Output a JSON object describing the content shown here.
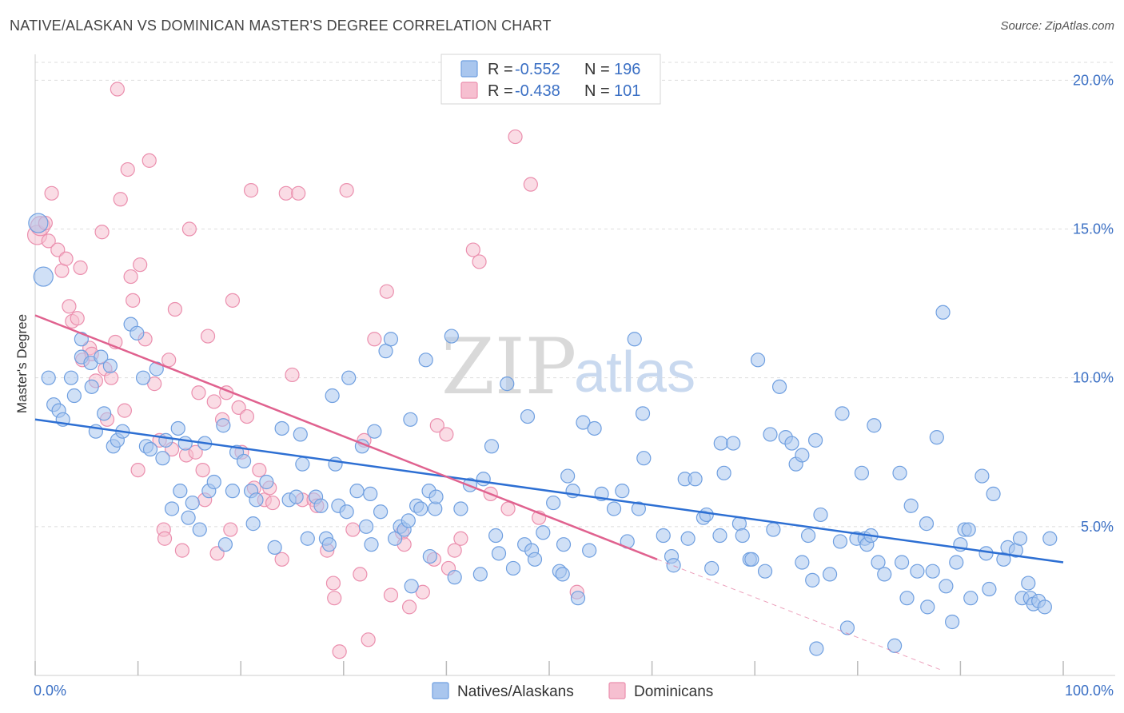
{
  "title": "NATIVE/ALASKAN VS DOMINICAN MASTER'S DEGREE CORRELATION CHART",
  "source": "Source: ZipAtlas.com",
  "colors": {
    "blue_fill": "#a9c6ee",
    "blue_stroke": "#6f9fe0",
    "blue_line": "#2d6fd3",
    "pink_fill": "#f6bfd0",
    "pink_stroke": "#eb8fae",
    "pink_line": "#e0628f",
    "axis_text": "#3a6fc4",
    "grid": "#dddddd"
  },
  "legend": {
    "r_label": "R =",
    "n_label": "N =",
    "rows": [
      {
        "series": "Natives/Alaskans",
        "r": "-0.552",
        "n": "196"
      },
      {
        "series": "Dominicans",
        "r": "-0.438",
        "n": "101"
      }
    ]
  },
  "watermark": {
    "zip": "ZIP",
    "atlas": "atlas"
  },
  "chart_data": {
    "type": "scatter",
    "xlabel": "",
    "ylabel": "Master's Degree",
    "xlim": [
      0,
      100
    ],
    "ylim": [
      0,
      20.6
    ],
    "y_ticks": [
      5,
      10,
      15,
      20
    ],
    "y_tick_labels": [
      "5.0%",
      "10.0%",
      "15.0%",
      "20.0%"
    ],
    "x_tick_labels": [
      "0.0%",
      "100.0%"
    ],
    "grid": true,
    "series": [
      {
        "name": "Natives/Alaskans",
        "trend": {
          "x": [
            0,
            100
          ],
          "y": [
            8.6,
            3.8
          ],
          "dashed_extension": null
        },
        "points": [
          [
            0.3,
            15.2
          ],
          [
            0.8,
            13.4
          ],
          [
            1.3,
            10.0
          ],
          [
            1.8,
            9.1
          ],
          [
            2.3,
            8.9
          ],
          [
            2.7,
            8.6
          ],
          [
            3.5,
            10.0
          ],
          [
            3.8,
            9.4
          ],
          [
            4.5,
            11.3
          ],
          [
            4.5,
            10.7
          ],
          [
            5.4,
            10.5
          ],
          [
            5.5,
            9.7
          ],
          [
            5.9,
            8.2
          ],
          [
            6.4,
            10.7
          ],
          [
            6.7,
            8.8
          ],
          [
            7.3,
            10.4
          ],
          [
            7.6,
            7.7
          ],
          [
            8.0,
            7.9
          ],
          [
            8.5,
            8.2
          ],
          [
            9.3,
            11.8
          ],
          [
            9.9,
            11.5
          ],
          [
            10.5,
            10.0
          ],
          [
            10.8,
            7.7
          ],
          [
            11.2,
            7.6
          ],
          [
            11.8,
            10.3
          ],
          [
            12.4,
            7.3
          ],
          [
            12.7,
            7.9
          ],
          [
            13.3,
            5.6
          ],
          [
            13.9,
            8.3
          ],
          [
            14.1,
            6.2
          ],
          [
            14.6,
            7.8
          ],
          [
            14.9,
            5.3
          ],
          [
            15.3,
            5.8
          ],
          [
            16.0,
            4.9
          ],
          [
            16.5,
            7.8
          ],
          [
            16.9,
            6.2
          ],
          [
            17.4,
            6.5
          ],
          [
            18.3,
            8.4
          ],
          [
            18.5,
            4.4
          ],
          [
            19.2,
            6.2
          ],
          [
            19.6,
            7.5
          ],
          [
            20.3,
            7.2
          ],
          [
            21.0,
            6.2
          ],
          [
            21.2,
            5.1
          ],
          [
            21.5,
            5.9
          ],
          [
            22.5,
            6.5
          ],
          [
            23.3,
            4.3
          ],
          [
            24.0,
            8.3
          ],
          [
            24.7,
            5.9
          ],
          [
            25.4,
            6.0
          ],
          [
            25.8,
            8.1
          ],
          [
            26.0,
            7.1
          ],
          [
            26.5,
            4.6
          ],
          [
            27.3,
            6.0
          ],
          [
            27.8,
            5.7
          ],
          [
            28.3,
            4.6
          ],
          [
            28.6,
            4.4
          ],
          [
            28.9,
            9.4
          ],
          [
            29.2,
            7.1
          ],
          [
            29.5,
            5.7
          ],
          [
            30.3,
            5.5
          ],
          [
            30.5,
            10.0
          ],
          [
            31.3,
            6.2
          ],
          [
            31.8,
            7.7
          ],
          [
            32.2,
            5.0
          ],
          [
            32.6,
            6.1
          ],
          [
            32.7,
            4.4
          ],
          [
            33.0,
            8.2
          ],
          [
            33.6,
            5.5
          ],
          [
            34.1,
            10.9
          ],
          [
            34.6,
            11.3
          ],
          [
            35.0,
            4.6
          ],
          [
            35.5,
            5.0
          ],
          [
            35.9,
            4.9
          ],
          [
            36.3,
            5.2
          ],
          [
            36.5,
            8.6
          ],
          [
            36.6,
            3.0
          ],
          [
            37.1,
            5.7
          ],
          [
            37.5,
            5.6
          ],
          [
            38.0,
            10.6
          ],
          [
            38.3,
            6.2
          ],
          [
            38.9,
            5.6
          ],
          [
            38.4,
            4.0
          ],
          [
            39.0,
            6.0
          ],
          [
            40.5,
            11.4
          ],
          [
            40.8,
            3.3
          ],
          [
            41.4,
            5.6
          ],
          [
            42.3,
            6.4
          ],
          [
            43.3,
            3.4
          ],
          [
            43.6,
            6.6
          ],
          [
            44.4,
            7.7
          ],
          [
            44.8,
            4.7
          ],
          [
            45.1,
            4.1
          ],
          [
            45.9,
            9.8
          ],
          [
            46.5,
            3.6
          ],
          [
            47.6,
            4.4
          ],
          [
            47.9,
            8.7
          ],
          [
            48.3,
            4.2
          ],
          [
            48.6,
            3.9
          ],
          [
            49.4,
            4.8
          ],
          [
            50.4,
            5.8
          ],
          [
            51.0,
            3.5
          ],
          [
            51.3,
            3.4
          ],
          [
            51.4,
            4.4
          ],
          [
            51.8,
            6.7
          ],
          [
            52.3,
            6.2
          ],
          [
            52.8,
            2.6
          ],
          [
            53.3,
            8.5
          ],
          [
            53.9,
            4.2
          ],
          [
            54.4,
            8.3
          ],
          [
            55.1,
            6.1
          ],
          [
            56.3,
            5.6
          ],
          [
            57.1,
            6.2
          ],
          [
            57.6,
            4.5
          ],
          [
            58.3,
            11.3
          ],
          [
            58.7,
            5.6
          ],
          [
            59.1,
            8.8
          ],
          [
            59.2,
            7.3
          ],
          [
            61.1,
            4.7
          ],
          [
            61.9,
            4.0
          ],
          [
            62.1,
            3.7
          ],
          [
            63.2,
            6.6
          ],
          [
            63.5,
            4.6
          ],
          [
            64.2,
            6.6
          ],
          [
            65.0,
            5.3
          ],
          [
            65.3,
            5.4
          ],
          [
            65.8,
            3.6
          ],
          [
            66.6,
            4.7
          ],
          [
            66.7,
            7.8
          ],
          [
            67.0,
            6.8
          ],
          [
            67.9,
            7.8
          ],
          [
            68.5,
            5.1
          ],
          [
            68.8,
            4.7
          ],
          [
            69.5,
            3.9
          ],
          [
            69.7,
            3.9
          ],
          [
            70.3,
            10.6
          ],
          [
            71.0,
            3.5
          ],
          [
            71.5,
            8.1
          ],
          [
            71.8,
            4.9
          ],
          [
            72.4,
            9.7
          ],
          [
            73.0,
            8.0
          ],
          [
            73.6,
            7.8
          ],
          [
            74.0,
            7.1
          ],
          [
            74.6,
            7.4
          ],
          [
            74.6,
            3.8
          ],
          [
            75.2,
            4.7
          ],
          [
            75.6,
            3.2
          ],
          [
            75.9,
            7.9
          ],
          [
            76.0,
            0.9
          ],
          [
            76.4,
            5.4
          ],
          [
            77.3,
            3.4
          ],
          [
            78.3,
            4.5
          ],
          [
            78.5,
            8.8
          ],
          [
            79.0,
            1.6
          ],
          [
            79.9,
            4.6
          ],
          [
            80.4,
            6.8
          ],
          [
            80.7,
            4.6
          ],
          [
            80.9,
            4.4
          ],
          [
            81.3,
            4.7
          ],
          [
            81.6,
            8.4
          ],
          [
            82.0,
            3.8
          ],
          [
            82.6,
            3.4
          ],
          [
            83.6,
            1.0
          ],
          [
            84.1,
            6.8
          ],
          [
            84.3,
            3.8
          ],
          [
            84.8,
            2.6
          ],
          [
            85.2,
            5.7
          ],
          [
            85.8,
            3.5
          ],
          [
            86.7,
            5.1
          ],
          [
            86.8,
            2.3
          ],
          [
            87.3,
            3.5
          ],
          [
            87.7,
            8.0
          ],
          [
            88.3,
            12.2
          ],
          [
            88.6,
            3.0
          ],
          [
            89.2,
            1.8
          ],
          [
            89.6,
            3.8
          ],
          [
            90.0,
            4.4
          ],
          [
            90.4,
            4.9
          ],
          [
            90.8,
            4.9
          ],
          [
            91.0,
            2.6
          ],
          [
            92.1,
            6.7
          ],
          [
            92.5,
            4.1
          ],
          [
            92.8,
            2.9
          ],
          [
            93.2,
            6.1
          ],
          [
            94.2,
            3.9
          ],
          [
            94.6,
            4.3
          ],
          [
            95.4,
            4.2
          ],
          [
            95.8,
            4.6
          ],
          [
            96.0,
            2.6
          ],
          [
            96.6,
            3.1
          ],
          [
            96.8,
            2.6
          ],
          [
            97.1,
            2.4
          ],
          [
            97.6,
            2.5
          ],
          [
            98.2,
            2.3
          ],
          [
            98.7,
            4.6
          ]
        ]
      },
      {
        "name": "Dominicans",
        "trend": {
          "x": [
            0,
            60.5
          ],
          "y": [
            12.1,
            3.9
          ],
          "dashed_extension": {
            "x": [
              60.5,
              88
            ],
            "y": [
              3.9,
              0.2
            ]
          }
        },
        "points": [
          [
            0.2,
            14.8
          ],
          [
            0.5,
            15.1
          ],
          [
            1.0,
            15.2
          ],
          [
            1.3,
            14.6
          ],
          [
            1.6,
            16.2
          ],
          [
            2.2,
            14.3
          ],
          [
            2.6,
            13.6
          ],
          [
            3.0,
            14.0
          ],
          [
            3.3,
            12.4
          ],
          [
            3.6,
            11.9
          ],
          [
            4.1,
            12.0
          ],
          [
            4.4,
            13.7
          ],
          [
            4.6,
            10.6
          ],
          [
            5.3,
            11.0
          ],
          [
            5.5,
            10.8
          ],
          [
            5.9,
            9.9
          ],
          [
            6.5,
            14.9
          ],
          [
            6.8,
            10.3
          ],
          [
            7.0,
            8.6
          ],
          [
            7.4,
            10.0
          ],
          [
            7.8,
            11.2
          ],
          [
            8.0,
            19.7
          ],
          [
            8.3,
            16.0
          ],
          [
            8.7,
            8.9
          ],
          [
            9.0,
            17.0
          ],
          [
            9.3,
            13.4
          ],
          [
            9.5,
            12.6
          ],
          [
            10.0,
            6.9
          ],
          [
            10.2,
            13.8
          ],
          [
            10.7,
            11.3
          ],
          [
            11.1,
            17.3
          ],
          [
            11.6,
            9.8
          ],
          [
            12.1,
            7.9
          ],
          [
            12.5,
            4.9
          ],
          [
            12.6,
            4.6
          ],
          [
            13.0,
            10.6
          ],
          [
            13.3,
            7.6
          ],
          [
            13.6,
            12.3
          ],
          [
            14.3,
            4.2
          ],
          [
            14.7,
            7.4
          ],
          [
            15.0,
            15.0
          ],
          [
            15.6,
            7.5
          ],
          [
            15.9,
            9.5
          ],
          [
            16.3,
            6.9
          ],
          [
            16.5,
            5.9
          ],
          [
            16.8,
            11.4
          ],
          [
            17.4,
            9.2
          ],
          [
            17.7,
            4.1
          ],
          [
            18.2,
            8.6
          ],
          [
            18.6,
            9.5
          ],
          [
            19.0,
            4.9
          ],
          [
            19.2,
            12.6
          ],
          [
            19.8,
            9.0
          ],
          [
            20.1,
            7.5
          ],
          [
            20.6,
            8.7
          ],
          [
            21.0,
            16.3
          ],
          [
            21.3,
            6.3
          ],
          [
            21.8,
            6.9
          ],
          [
            22.3,
            5.9
          ],
          [
            22.8,
            6.3
          ],
          [
            23.1,
            5.8
          ],
          [
            24.0,
            3.9
          ],
          [
            24.4,
            16.2
          ],
          [
            25.0,
            10.1
          ],
          [
            25.6,
            16.2
          ],
          [
            26.0,
            5.9
          ],
          [
            27.1,
            5.9
          ],
          [
            27.4,
            5.7
          ],
          [
            28.4,
            4.2
          ],
          [
            29.0,
            3.1
          ],
          [
            29.1,
            2.6
          ],
          [
            29.6,
            0.8
          ],
          [
            30.3,
            16.3
          ],
          [
            30.9,
            4.9
          ],
          [
            31.6,
            3.4
          ],
          [
            32.0,
            7.9
          ],
          [
            32.4,
            1.2
          ],
          [
            33.0,
            11.3
          ],
          [
            34.2,
            12.9
          ],
          [
            34.6,
            2.7
          ],
          [
            35.7,
            4.8
          ],
          [
            35.9,
            4.4
          ],
          [
            36.4,
            2.3
          ],
          [
            37.7,
            2.8
          ],
          [
            38.8,
            3.9
          ],
          [
            39.1,
            8.4
          ],
          [
            40.0,
            8.1
          ],
          [
            40.2,
            3.6
          ],
          [
            40.8,
            4.2
          ],
          [
            41.4,
            4.6
          ],
          [
            42.6,
            14.3
          ],
          [
            43.2,
            13.9
          ],
          [
            44.3,
            6.1
          ],
          [
            46.0,
            5.6
          ],
          [
            46.7,
            18.1
          ],
          [
            48.2,
            16.5
          ],
          [
            49.0,
            5.3
          ],
          [
            52.7,
            2.8
          ]
        ]
      }
    ]
  },
  "bottom_legend": [
    {
      "label": "Natives/Alaskans"
    },
    {
      "label": "Dominicans"
    }
  ]
}
